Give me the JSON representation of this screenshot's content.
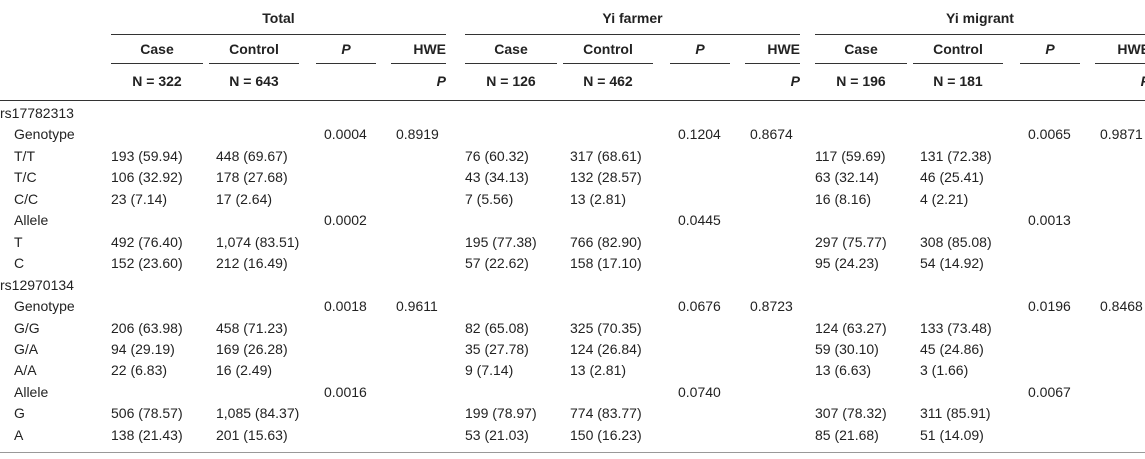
{
  "header": {
    "groups": [
      "Total",
      "Yi farmer",
      "Yi migrant"
    ],
    "col_case": "Case",
    "col_control": "Control",
    "col_p": "P",
    "col_hwe": "HWE",
    "col_hwe_p": "P",
    "n_values": [
      "N = 322",
      "N = 643",
      "N = 126",
      "N = 462",
      "N = 196",
      "N = 181"
    ]
  },
  "rows": [
    {
      "label": "rs17782313",
      "level": 0,
      "cells": [
        "",
        "",
        "",
        "",
        "",
        "",
        "",
        "",
        "",
        "",
        "",
        ""
      ]
    },
    {
      "label": "Genotype",
      "level": 1,
      "cells": [
        "",
        "",
        "0.0004",
        "0.8919",
        "",
        "",
        "0.1204",
        "0.8674",
        "",
        "",
        "0.0065",
        "0.9871"
      ]
    },
    {
      "label": "T/T",
      "level": 1,
      "cells": [
        "193 (59.94)",
        "448 (69.67)",
        "",
        "",
        "76 (60.32)",
        "317 (68.61)",
        "",
        "",
        "117 (59.69)",
        "131 (72.38)",
        "",
        ""
      ]
    },
    {
      "label": "T/C",
      "level": 1,
      "cells": [
        "106 (32.92)",
        "178 (27.68)",
        "",
        "",
        "43 (34.13)",
        "132 (28.57)",
        "",
        "",
        "63 (32.14)",
        "46 (25.41)",
        "",
        ""
      ]
    },
    {
      "label": "C/C",
      "level": 1,
      "cells": [
        "23 (7.14)",
        "17 (2.64)",
        "",
        "",
        "7 (5.56)",
        "13 (2.81)",
        "",
        "",
        "16 (8.16)",
        "4 (2.21)",
        "",
        ""
      ]
    },
    {
      "label": "Allele",
      "level": 1,
      "cells": [
        "",
        "",
        "0.0002",
        "",
        "",
        "",
        "0.0445",
        "",
        "",
        "",
        "0.0013",
        ""
      ]
    },
    {
      "label": "T",
      "level": 1,
      "cells": [
        "492 (76.40)",
        "1,074 (83.51)",
        "",
        "",
        "195 (77.38)",
        "766 (82.90)",
        "",
        "",
        "297 (75.77)",
        "308 (85.08)",
        "",
        ""
      ]
    },
    {
      "label": "C",
      "level": 1,
      "cells": [
        "152 (23.60)",
        "212 (16.49)",
        "",
        "",
        "57 (22.62)",
        "158 (17.10)",
        "",
        "",
        "95 (24.23)",
        "54 (14.92)",
        "",
        ""
      ]
    },
    {
      "label": "rs12970134",
      "level": 0,
      "cells": [
        "",
        "",
        "",
        "",
        "",
        "",
        "",
        "",
        "",
        "",
        "",
        ""
      ]
    },
    {
      "label": "Genotype",
      "level": 1,
      "cells": [
        "",
        "",
        "0.0018",
        "0.9611",
        "",
        "",
        "0.0676",
        "0.8723",
        "",
        "",
        "0.0196",
        "0.8468"
      ]
    },
    {
      "label": "G/G",
      "level": 1,
      "cells": [
        "206 (63.98)",
        "458 (71.23)",
        "",
        "",
        "82 (65.08)",
        "325 (70.35)",
        "",
        "",
        "124 (63.27)",
        "133 (73.48)",
        "",
        ""
      ]
    },
    {
      "label": "G/A",
      "level": 1,
      "cells": [
        "94 (29.19)",
        "169 (26.28)",
        "",
        "",
        "35 (27.78)",
        "124 (26.84)",
        "",
        "",
        "59 (30.10)",
        "45 (24.86)",
        "",
        ""
      ]
    },
    {
      "label": "A/A",
      "level": 1,
      "cells": [
        "22 (6.83)",
        "16 (2.49)",
        "",
        "",
        "9 (7.14)",
        "13 (2.81)",
        "",
        "",
        "13 (6.63)",
        "3 (1.66)",
        "",
        ""
      ]
    },
    {
      "label": "Allele",
      "level": 1,
      "cells": [
        "",
        "",
        "0.0016",
        "",
        "",
        "",
        "0.0740",
        "",
        "",
        "",
        "0.0067",
        ""
      ]
    },
    {
      "label": "G",
      "level": 1,
      "cells": [
        "506 (78.57)",
        "1,085 (84.37)",
        "",
        "",
        "199 (78.97)",
        "774 (83.77)",
        "",
        "",
        "307 (78.32)",
        "311 (85.91)",
        "",
        ""
      ]
    },
    {
      "label": "A",
      "level": 1,
      "cells": [
        "138 (21.43)",
        "201 (15.63)",
        "",
        "",
        "53 (21.03)",
        "150 (16.23)",
        "",
        "",
        "85 (21.68)",
        "51 (14.09)",
        "",
        ""
      ]
    }
  ]
}
